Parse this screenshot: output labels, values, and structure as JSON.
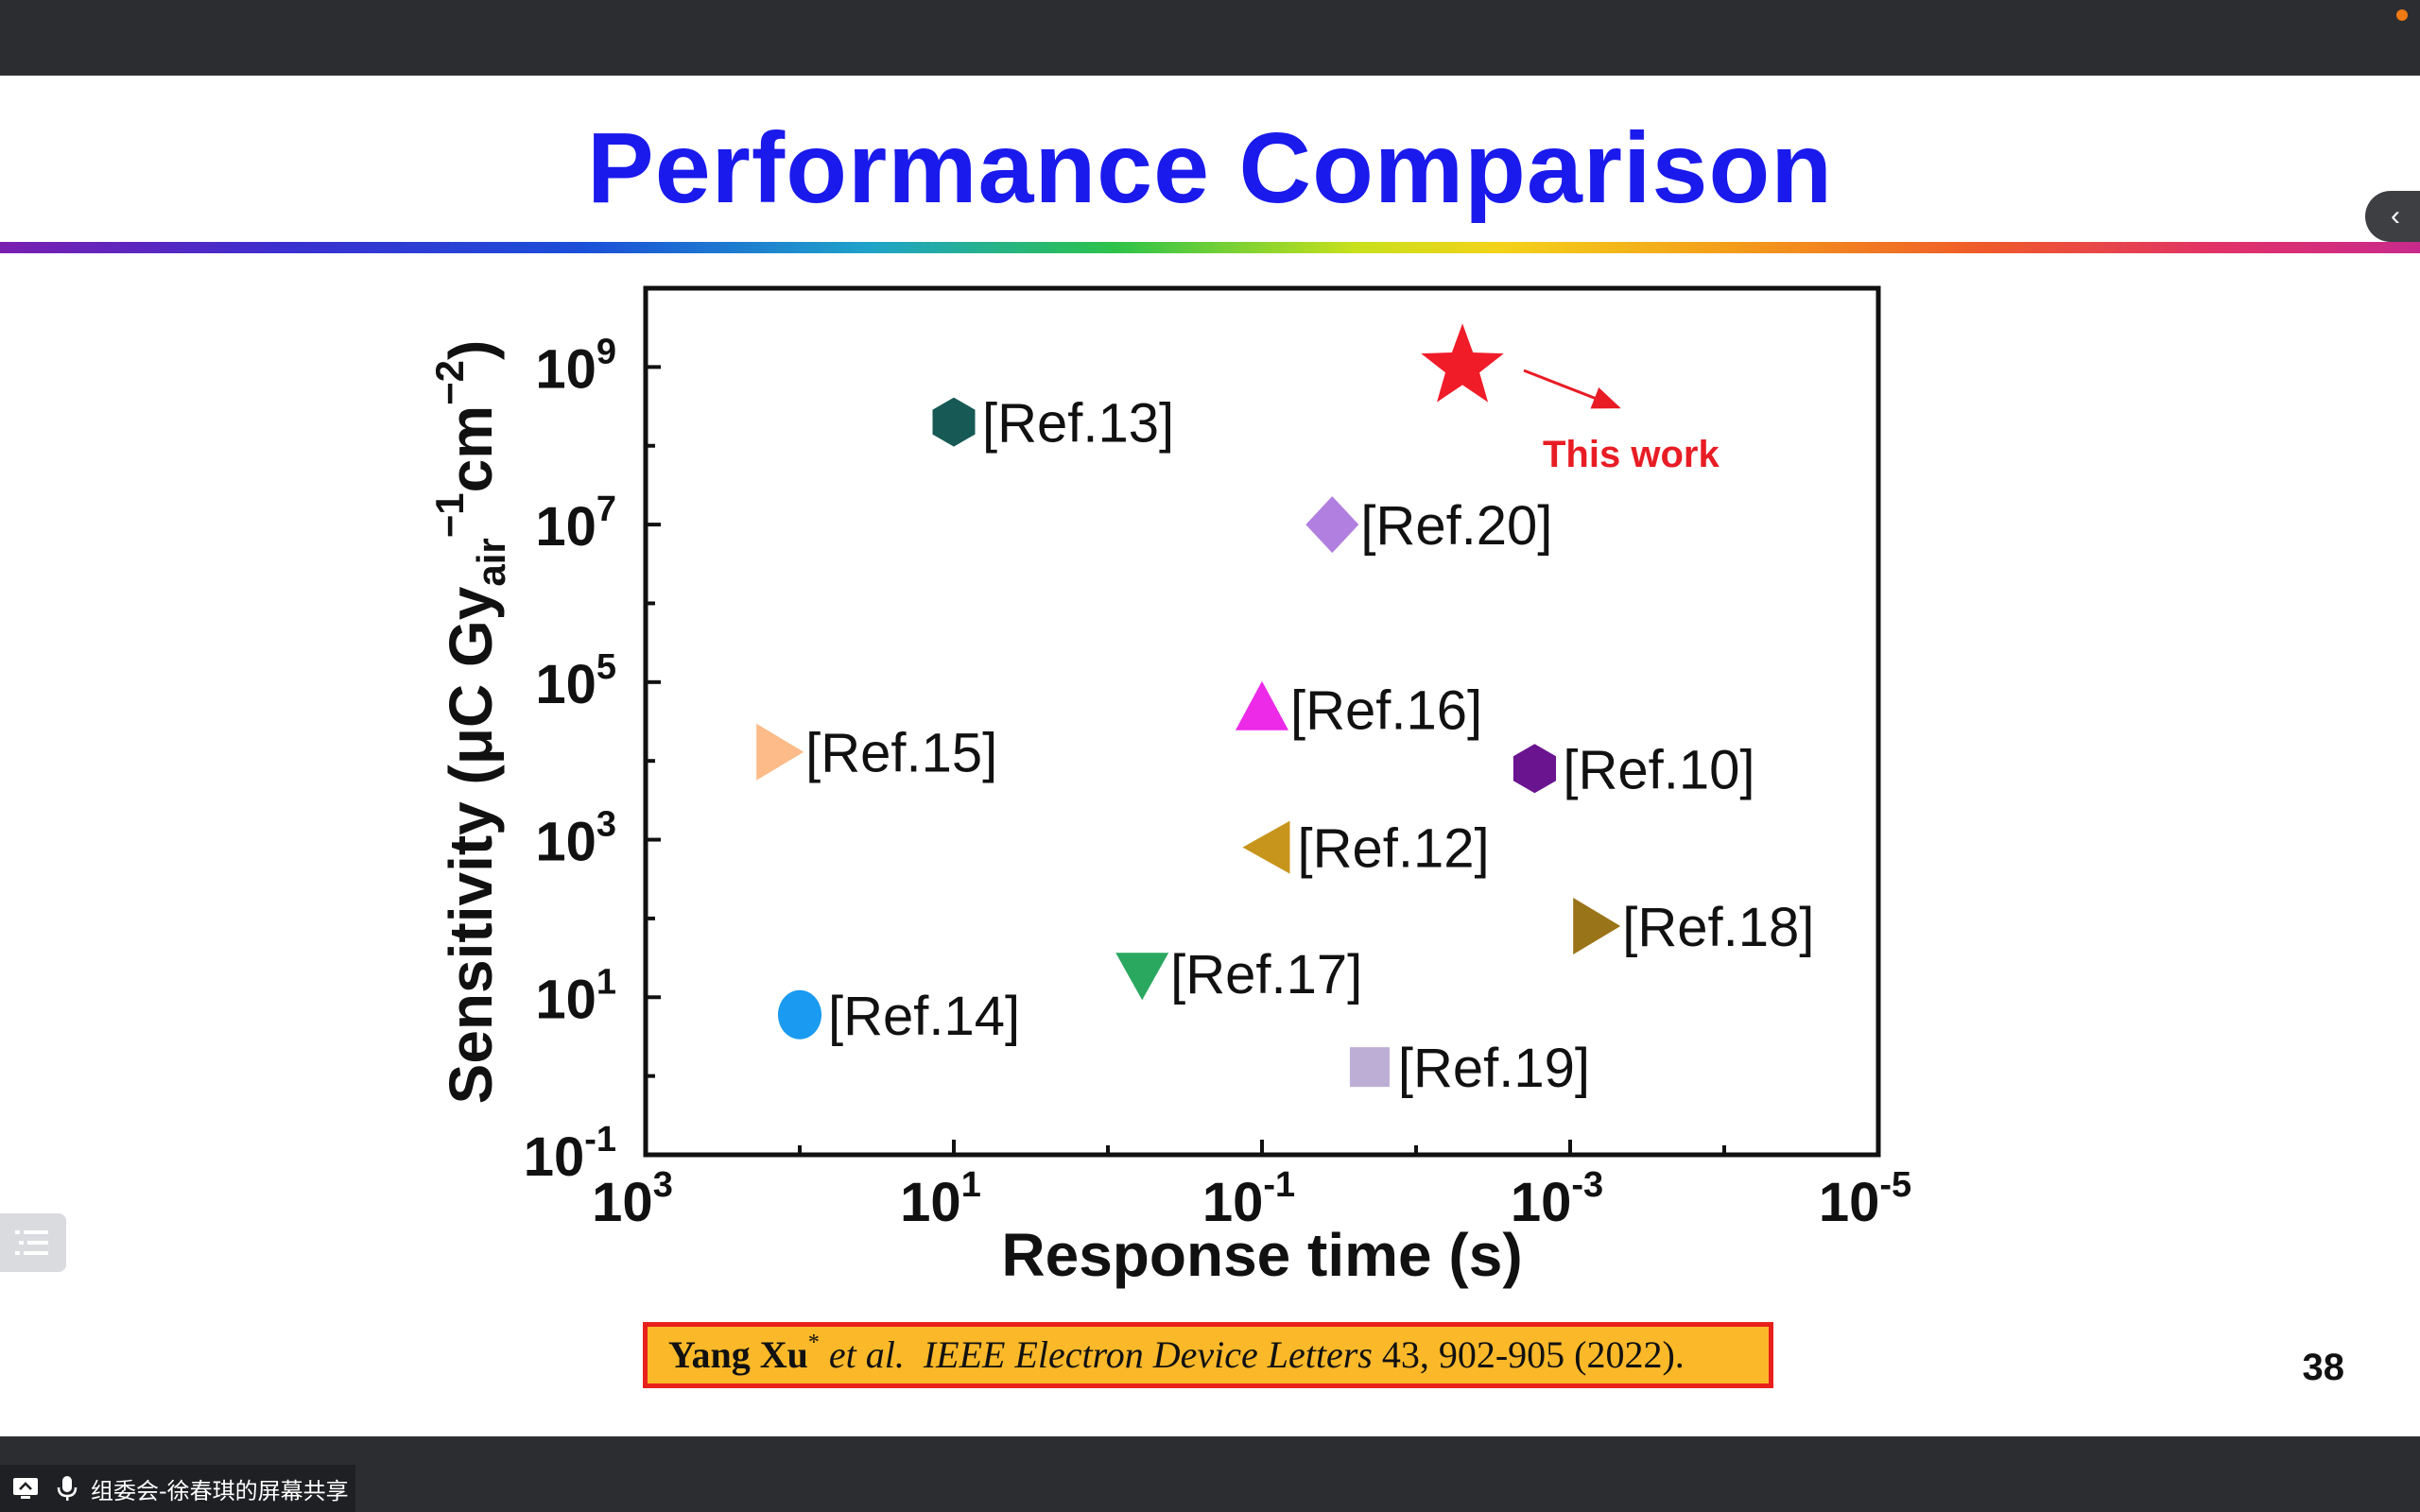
{
  "window": {
    "share_label": "组委会-徐春琪的屏幕共享"
  },
  "slide": {
    "title": "Performance Comparison",
    "page_number": "38",
    "citation": {
      "author": "Yang Xu",
      "author_mark": "*",
      "etal": "et al.",
      "journal": "IEEE Electron Device Letters",
      "details": "43, 902-905 (2022)."
    }
  },
  "chart_data": {
    "type": "scatter",
    "xlabel": "Response time (s)",
    "ylabel_parts": {
      "main": "Sensitivity (μC Gy",
      "sub": "air",
      "sup1": "−1",
      "mid": "cm",
      "sup2": "−2",
      "end": ")"
    },
    "x_scale": "log",
    "x_reversed": true,
    "y_scale": "log",
    "xlim": [
      1000,
      1e-05
    ],
    "ylim": [
      0.1,
      10000000000
    ],
    "x_ticks": [
      {
        "value": 1000,
        "base": "10",
        "exp": "3"
      },
      {
        "value": 10,
        "base": "10",
        "exp": "1"
      },
      {
        "value": 0.1,
        "base": "10",
        "exp": "-1"
      },
      {
        "value": 0.001,
        "base": "10",
        "exp": "-3"
      },
      {
        "value": 1e-05,
        "base": "10",
        "exp": "-5"
      }
    ],
    "y_ticks": [
      {
        "value": 0.1,
        "base": "10",
        "exp": "-1"
      },
      {
        "value": 10,
        "base": "10",
        "exp": "1"
      },
      {
        "value": 1000,
        "base": "10",
        "exp": "3"
      },
      {
        "value": 100000,
        "base": "10",
        "exp": "5"
      },
      {
        "value": 10000000,
        "base": "10",
        "exp": "7"
      },
      {
        "value": 1000000000,
        "base": "10",
        "exp": "9"
      }
    ],
    "grid": false,
    "annotation": {
      "text": "This work",
      "color": "#e81c24"
    },
    "points": [
      {
        "label": "[Ref.13]",
        "x": 10,
        "y": 200000000,
        "marker": "hexagon",
        "color": "#175a55"
      },
      {
        "label": "[Ref.20]",
        "x": 0.035,
        "y": 10000000,
        "marker": "diamond",
        "color": "#b07fe0"
      },
      {
        "label": "[Ref.16]",
        "x": 0.1,
        "y": 45000,
        "marker": "triangle-up",
        "color": "#ec2ae8"
      },
      {
        "label": "[Ref.15]",
        "x": 140,
        "y": 13000,
        "marker": "triangle-right",
        "color": "#fcbb88"
      },
      {
        "label": "[Ref.10]",
        "x": 0.0017,
        "y": 8000,
        "marker": "hexagon",
        "color": "#6a1490"
      },
      {
        "label": "[Ref.12]",
        "x": 0.09,
        "y": 800,
        "marker": "triangle-left",
        "color": "#c8951c"
      },
      {
        "label": "[Ref.18]",
        "x": 0.0007,
        "y": 80,
        "marker": "triangle-right",
        "color": "#9a7418"
      },
      {
        "label": "[Ref.17]",
        "x": 0.6,
        "y": 20,
        "marker": "triangle-down",
        "color": "#2aa860"
      },
      {
        "label": "[Ref.14]",
        "x": 100,
        "y": 6,
        "marker": "circle",
        "color": "#1a9af0"
      },
      {
        "label": "[Ref.19]",
        "x": 0.02,
        "y": 1.3,
        "marker": "square",
        "color": "#bdaed6"
      },
      {
        "label": "",
        "x": 0.005,
        "y": 1000000000,
        "marker": "star",
        "color": "#f01c28",
        "this_work": true
      }
    ]
  }
}
